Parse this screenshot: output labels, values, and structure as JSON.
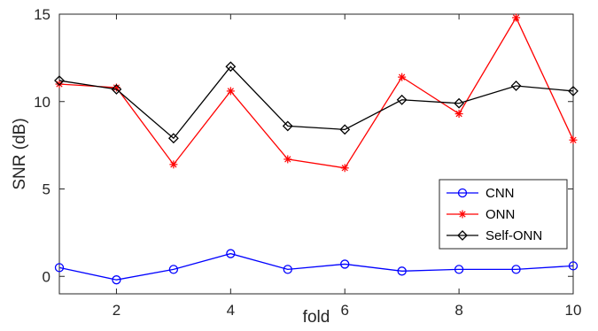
{
  "chart_data": {
    "type": "line",
    "xlabel": "fold",
    "ylabel": "SNR (dB)",
    "xlim": [
      1,
      10
    ],
    "ylim": [
      -1,
      15
    ],
    "xticks": [
      2,
      4,
      6,
      8,
      10
    ],
    "yticks": [
      0,
      5,
      10,
      15
    ],
    "grid": false,
    "legend_position": "bottom-right",
    "x": [
      1,
      2,
      3,
      4,
      5,
      6,
      7,
      8,
      9,
      10
    ],
    "series": [
      {
        "name": "CNN",
        "color": "#0000ff",
        "marker": "circle",
        "values": [
          0.5,
          -0.2,
          0.4,
          1.3,
          0.4,
          0.7,
          0.3,
          0.4,
          0.4,
          0.6
        ]
      },
      {
        "name": "ONN",
        "color": "#ff0000",
        "marker": "star",
        "values": [
          11.0,
          10.8,
          6.4,
          10.6,
          6.7,
          6.2,
          11.4,
          9.3,
          14.8,
          7.8
        ]
      },
      {
        "name": "Self-ONN",
        "color": "#000000",
        "marker": "diamond",
        "values": [
          11.2,
          10.7,
          7.9,
          12.0,
          8.6,
          8.4,
          10.1,
          9.9,
          10.9,
          10.6
        ]
      }
    ]
  }
}
